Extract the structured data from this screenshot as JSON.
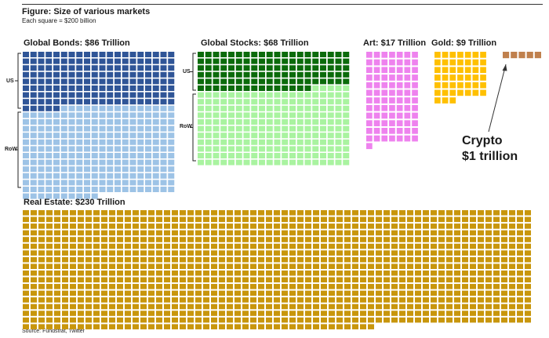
{
  "figure": {
    "title": "Figure: Size of various markets",
    "subtitle": "Each square = $200 billion",
    "source": "Source: Fundstrat, Twitter"
  },
  "chart_data": {
    "type": "waffle",
    "unit": "$ billion per square",
    "square_value": 200,
    "title": "Figure: Size of various markets",
    "markets": [
      {
        "id": "bonds",
        "label": "Global Bonds: $86 Trillion",
        "value_trillion": 86,
        "segments": [
          {
            "name": "US",
            "squares": 165,
            "color": "#2f5597"
          },
          {
            "name": "RoW",
            "squares": 265,
            "color": "#9dc3e6"
          }
        ]
      },
      {
        "id": "stocks",
        "label": "Global Stocks: $68 Trillion",
        "value_trillion": 68,
        "segments": [
          {
            "name": "US",
            "squares": 115,
            "color": "#0b6b0b"
          },
          {
            "name": "RoW",
            "squares": 225,
            "color": "#a9f3a0"
          }
        ]
      },
      {
        "id": "art",
        "label": "Art: $17 Trillion",
        "value_trillion": 17,
        "segments": [
          {
            "name": "",
            "squares": 85,
            "color": "#ee82ee"
          }
        ]
      },
      {
        "id": "gold",
        "label": "Gold: $9 Trillion",
        "value_trillion": 9,
        "segments": [
          {
            "name": "",
            "squares": 45,
            "color": "#ffc000"
          }
        ]
      },
      {
        "id": "crypto",
        "label": "Crypto\n$1 trillion",
        "value_trillion": 1,
        "segments": [
          {
            "name": "",
            "squares": 5,
            "color": "#c0804d"
          }
        ]
      },
      {
        "id": "realestate",
        "label": "Real Estate: $230 Trillion",
        "value_trillion": 230,
        "segments": [
          {
            "name": "",
            "squares": 1150,
            "color": "#c8960c"
          }
        ]
      }
    ]
  },
  "labels": {
    "bonds": "Global Bonds: $86 Trillion",
    "stocks": "Global Stocks: $68 Trillion",
    "art": "Art: $17 Trillion",
    "gold": "Gold: $9 Trillion",
    "crypto_line1": "Crypto",
    "crypto_line2": "$1 trillion",
    "realestate": "Real Estate: $230 Trillion",
    "us": "US",
    "row": "RoW"
  }
}
